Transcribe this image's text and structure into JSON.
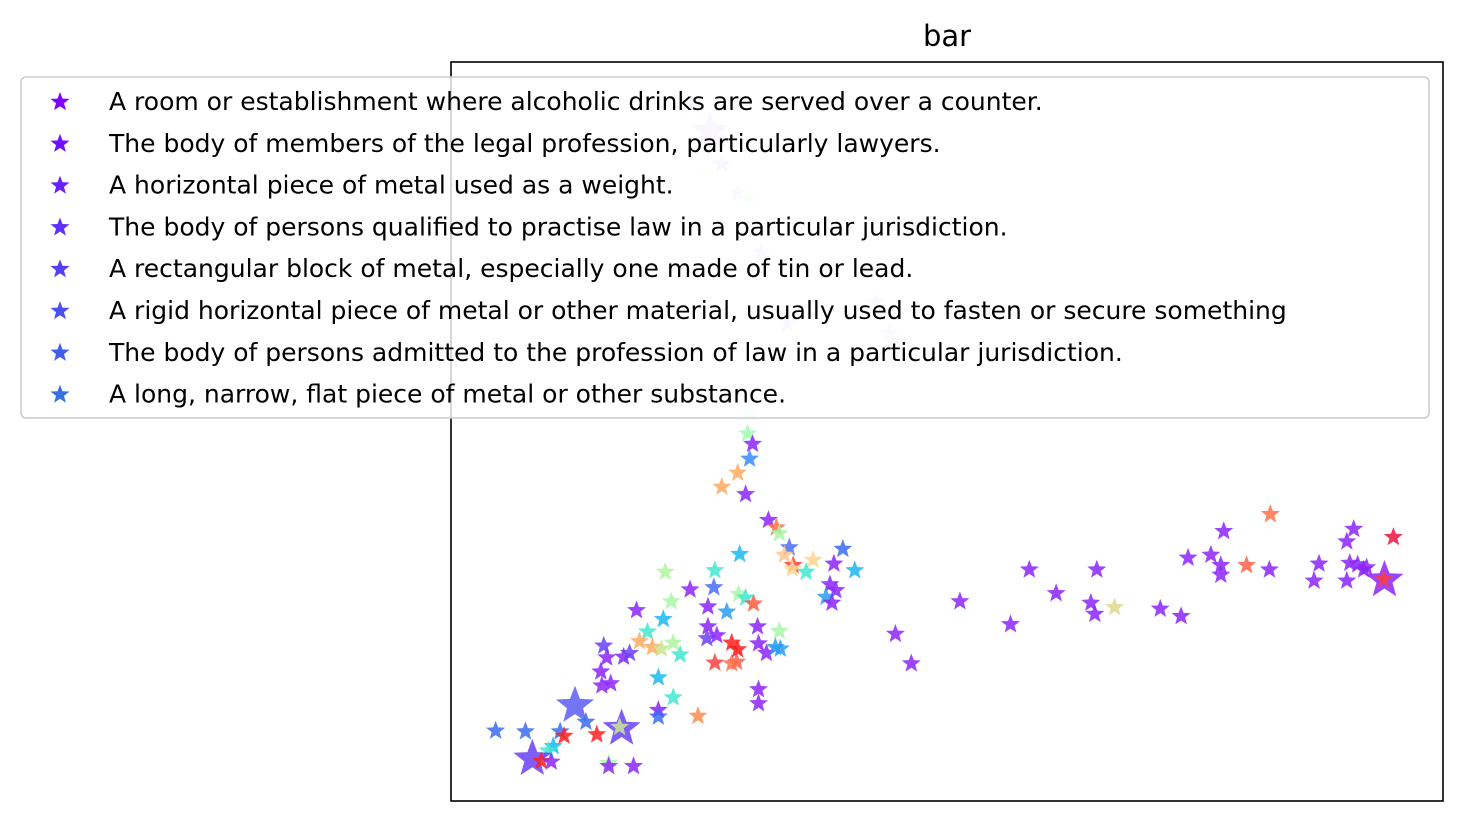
{
  "chart_data": {
    "type": "scatter",
    "title": "bar",
    "xlabel": "",
    "ylabel": "",
    "xlim": [
      0,
      100
    ],
    "ylim": [
      0,
      100
    ],
    "axis_ticks": false,
    "grid": false,
    "marker": "star",
    "legend_position": "top-left, overlapping plot",
    "legend": [
      {
        "label": "A room or establishment where alcoholic drinks are served over a counter.",
        "color": "#8000ff"
      },
      {
        "label": "The body of members of the legal profession, particularly lawyers.",
        "color": "#7010ff"
      },
      {
        "label": "A horizontal piece of metal used as a weight.",
        "color": "#6a20ff"
      },
      {
        "label": "The body of persons qualified to practise law in a particular jurisdiction.",
        "color": "#6030fb"
      },
      {
        "label": "A rectangular block of metal, especially one made of tin or lead.",
        "color": "#5440f5"
      },
      {
        "label": "A rigid horizontal piece of metal or other material, usually used to fasten or secure something",
        "color": "#4a50f0"
      },
      {
        "label": "The body of persons admitted to the profession of law in a particular jurisdiction.",
        "color": "#4060ea"
      },
      {
        "label": "A long, narrow, flat piece of metal or other substance.",
        "color": "#3670e3"
      }
    ],
    "points": [
      {
        "x": 24.3,
        "y": 94.0,
        "color": "#e0ccff",
        "large": false
      },
      {
        "x": 26.1,
        "y": 90.6,
        "color": "#dccbff",
        "large": true
      },
      {
        "x": 27.3,
        "y": 89.3,
        "color": "#e3d3ff",
        "large": false
      },
      {
        "x": 27.3,
        "y": 86.2,
        "color": "#dccbff",
        "large": false
      },
      {
        "x": 28.9,
        "y": 82.3,
        "color": "#e8dcff",
        "large": false
      },
      {
        "x": 30.0,
        "y": 81.6,
        "color": "#e0ffe8",
        "large": false
      },
      {
        "x": 25.6,
        "y": 85.0,
        "color": "#f3ffd8",
        "large": false
      },
      {
        "x": 31.3,
        "y": 74.3,
        "color": "#e6d9ff",
        "large": false
      },
      {
        "x": 42.8,
        "y": 67.5,
        "color": "#e3d3ff",
        "large": false
      },
      {
        "x": 44.2,
        "y": 63.3,
        "color": "#e6d9ff",
        "large": false
      },
      {
        "x": 33.9,
        "y": 64.5,
        "color": "#e6d9ff",
        "large": false
      },
      {
        "x": 30.0,
        "y": 52.6,
        "color": "#c8ffd8",
        "large": false
      },
      {
        "x": 29.9,
        "y": 49.7,
        "color": "#9fffb0",
        "large": false
      },
      {
        "x": 30.4,
        "y": 48.3,
        "color": "#8c24fb",
        "large": false
      },
      {
        "x": 30.1,
        "y": 46.3,
        "color": "#3a8cff",
        "large": false
      },
      {
        "x": 28.9,
        "y": 44.4,
        "color": "#ffaa60",
        "large": false
      },
      {
        "x": 27.3,
        "y": 42.5,
        "color": "#ffaa60",
        "large": false
      },
      {
        "x": 29.7,
        "y": 41.5,
        "color": "#8c24fb",
        "large": false
      },
      {
        "x": 32.0,
        "y": 38.0,
        "color": "#8c24fb",
        "large": false
      },
      {
        "x": 32.8,
        "y": 37.0,
        "color": "#ff7048",
        "large": false
      },
      {
        "x": 33.1,
        "y": 36.2,
        "color": "#a8f7a8",
        "large": false
      },
      {
        "x": 34.1,
        "y": 34.3,
        "color": "#4a6cf5",
        "large": false
      },
      {
        "x": 33.6,
        "y": 33.3,
        "color": "#ffc88c",
        "large": false
      },
      {
        "x": 34.5,
        "y": 31.9,
        "color": "#ff4040",
        "large": false
      },
      {
        "x": 36.5,
        "y": 32.6,
        "color": "#ffd28c",
        "large": false
      },
      {
        "x": 34.4,
        "y": 31.4,
        "color": "#ffd890",
        "large": false
      },
      {
        "x": 35.8,
        "y": 31.0,
        "color": "#40e8d0",
        "large": false
      },
      {
        "x": 39.5,
        "y": 34.1,
        "color": "#3a6cf5",
        "large": false
      },
      {
        "x": 40.7,
        "y": 31.2,
        "color": "#1ab8f0",
        "large": false
      },
      {
        "x": 38.2,
        "y": 29.3,
        "color": "#8c24fb",
        "large": false
      },
      {
        "x": 38.8,
        "y": 28.5,
        "color": "#8c24fb",
        "large": false
      },
      {
        "x": 37.8,
        "y": 27.6,
        "color": "#2a9cf0",
        "large": false
      },
      {
        "x": 38.4,
        "y": 26.8,
        "color": "#8c24fb",
        "large": false
      },
      {
        "x": 26.6,
        "y": 31.2,
        "color": "#40e8d0",
        "large": false
      },
      {
        "x": 29.1,
        "y": 33.4,
        "color": "#1ab8f0",
        "large": false
      },
      {
        "x": 21.6,
        "y": 31.0,
        "color": "#b0f5a0",
        "large": false
      },
      {
        "x": 24.1,
        "y": 28.6,
        "color": "#8c24fb",
        "large": false
      },
      {
        "x": 26.5,
        "y": 28.9,
        "color": "#4a6cf5",
        "large": false
      },
      {
        "x": 29.0,
        "y": 28.0,
        "color": "#a8f7a8",
        "large": false
      },
      {
        "x": 29.7,
        "y": 27.5,
        "color": "#40e8d0",
        "large": false
      },
      {
        "x": 30.5,
        "y": 26.7,
        "color": "#ff5a40",
        "large": false
      },
      {
        "x": 22.2,
        "y": 27.0,
        "color": "#a8f7a8",
        "large": false
      },
      {
        "x": 25.9,
        "y": 26.3,
        "color": "#8c24fb",
        "large": false
      },
      {
        "x": 27.8,
        "y": 25.6,
        "color": "#2a9cf0",
        "large": false
      },
      {
        "x": 21.4,
        "y": 24.6,
        "color": "#1ab8f0",
        "large": false
      },
      {
        "x": 25.9,
        "y": 23.6,
        "color": "#8c24fb",
        "large": false
      },
      {
        "x": 30.9,
        "y": 23.6,
        "color": "#8c24fb",
        "large": false
      },
      {
        "x": 33.1,
        "y": 23.0,
        "color": "#a8f7a8",
        "large": false
      },
      {
        "x": 19.8,
        "y": 22.9,
        "color": "#40e8d0",
        "large": false
      },
      {
        "x": 25.8,
        "y": 22.0,
        "color": "#6a40f8",
        "large": false
      },
      {
        "x": 26.8,
        "y": 22.4,
        "color": "#8c24fb",
        "large": false
      },
      {
        "x": 28.3,
        "y": 21.4,
        "color": "#ff2020",
        "large": false
      },
      {
        "x": 19.0,
        "y": 21.6,
        "color": "#ffaa60",
        "large": false
      },
      {
        "x": 20.3,
        "y": 20.8,
        "color": "#ffaa60",
        "large": false
      },
      {
        "x": 21.2,
        "y": 20.6,
        "color": "#c8e890",
        "large": false
      },
      {
        "x": 22.4,
        "y": 21.4,
        "color": "#b0f5a0",
        "large": false
      },
      {
        "x": 23.1,
        "y": 19.8,
        "color": "#40e8d0",
        "large": false
      },
      {
        "x": 17.4,
        "y": 19.5,
        "color": "#8c24fb",
        "large": false
      },
      {
        "x": 18.0,
        "y": 20.0,
        "color": "#6a40f8",
        "large": false
      },
      {
        "x": 31.0,
        "y": 21.3,
        "color": "#8c24fb",
        "large": false
      },
      {
        "x": 31.8,
        "y": 20.0,
        "color": "#8c24fb",
        "large": false
      },
      {
        "x": 32.7,
        "y": 20.8,
        "color": "#2a9cf0",
        "large": false
      },
      {
        "x": 33.2,
        "y": 20.6,
        "color": "#2a9cf0",
        "large": false
      },
      {
        "x": 26.6,
        "y": 18.7,
        "color": "#ff4040",
        "large": false
      },
      {
        "x": 28.8,
        "y": 18.8,
        "color": "#ff6048",
        "large": false
      },
      {
        "x": 28.3,
        "y": 18.6,
        "color": "#ff7048",
        "large": false
      },
      {
        "x": 28.9,
        "y": 20.5,
        "color": "#ff1818",
        "large": false
      },
      {
        "x": 20.9,
        "y": 16.7,
        "color": "#1ab8f0",
        "large": false
      },
      {
        "x": 15.2,
        "y": 15.6,
        "color": "#8c24fb",
        "large": false
      },
      {
        "x": 31.0,
        "y": 15.1,
        "color": "#8c24fb",
        "large": false
      },
      {
        "x": 22.4,
        "y": 14.0,
        "color": "#40e8d0",
        "large": false
      },
      {
        "x": 31.0,
        "y": 13.2,
        "color": "#8c24fb",
        "large": false
      },
      {
        "x": 20.9,
        "y": 12.3,
        "color": "#8c24fb",
        "large": false
      },
      {
        "x": 20.9,
        "y": 11.4,
        "color": "#3a6cf5",
        "large": false
      },
      {
        "x": 24.9,
        "y": 11.5,
        "color": "#ff8c50",
        "large": false
      },
      {
        "x": 12.5,
        "y": 12.9,
        "color": "#5a5cf5",
        "large": true
      },
      {
        "x": 13.6,
        "y": 10.7,
        "color": "#3a6cf5",
        "large": false
      },
      {
        "x": 17.2,
        "y": 9.8,
        "color": "#6a40f8",
        "large": true
      },
      {
        "x": 17.0,
        "y": 10.0,
        "color": "#c8e890",
        "large": false
      },
      {
        "x": 11.0,
        "y": 9.4,
        "color": "#3a6cf5",
        "large": false
      },
      {
        "x": 11.4,
        "y": 8.8,
        "color": "#ff2020",
        "large": false
      },
      {
        "x": 14.7,
        "y": 9.0,
        "color": "#ff2020",
        "large": false
      },
      {
        "x": 10.3,
        "y": 7.4,
        "color": "#1ab8f0",
        "large": false
      },
      {
        "x": 9.8,
        "y": 6.8,
        "color": "#40e8d0",
        "large": false
      },
      {
        "x": 4.5,
        "y": 9.5,
        "color": "#3a6cf5",
        "large": false
      },
      {
        "x": 7.5,
        "y": 9.4,
        "color": "#3a6cf5",
        "large": false
      },
      {
        "x": 8.2,
        "y": 5.7,
        "color": "#6a40f8",
        "large": true
      },
      {
        "x": 9.1,
        "y": 5.4,
        "color": "#ff2020",
        "large": false
      },
      {
        "x": 10.1,
        "y": 5.3,
        "color": "#8c24fb",
        "large": false
      },
      {
        "x": 15.9,
        "y": 5.1,
        "color": "#a8f7a8",
        "large": false
      },
      {
        "x": 15.9,
        "y": 4.7,
        "color": "#8c24fb",
        "large": false
      },
      {
        "x": 18.4,
        "y": 4.7,
        "color": "#8c24fb",
        "large": false
      },
      {
        "x": 15.1,
        "y": 17.5,
        "color": "#8c24fb",
        "large": false
      },
      {
        "x": 15.7,
        "y": 19.4,
        "color": "#8c24fb",
        "large": false
      },
      {
        "x": 18.7,
        "y": 25.8,
        "color": "#8c24fb",
        "large": false
      },
      {
        "x": 16.1,
        "y": 15.9,
        "color": "#8c24fb",
        "large": false
      },
      {
        "x": 15.4,
        "y": 21.0,
        "color": "#6a40f8",
        "large": false
      },
      {
        "x": 38.6,
        "y": 32.1,
        "color": "#8c24fb",
        "large": false
      },
      {
        "x": 44.8,
        "y": 22.6,
        "color": "#8c24fb",
        "large": false
      },
      {
        "x": 46.4,
        "y": 18.6,
        "color": "#8c24fb",
        "large": false
      },
      {
        "x": 51.3,
        "y": 27.0,
        "color": "#8c24fb",
        "large": false
      },
      {
        "x": 56.4,
        "y": 23.9,
        "color": "#8c24fb",
        "large": false
      },
      {
        "x": 58.3,
        "y": 31.3,
        "color": "#8c24fb",
        "large": false
      },
      {
        "x": 61.0,
        "y": 28.1,
        "color": "#8c24fb",
        "large": false
      },
      {
        "x": 65.1,
        "y": 31.3,
        "color": "#8c24fb",
        "large": false
      },
      {
        "x": 64.5,
        "y": 26.8,
        "color": "#8c24fb",
        "large": false
      },
      {
        "x": 64.9,
        "y": 25.3,
        "color": "#8c24fb",
        "large": false
      },
      {
        "x": 66.9,
        "y": 26.2,
        "color": "#e0d890",
        "large": false
      },
      {
        "x": 71.5,
        "y": 26.0,
        "color": "#8c24fb",
        "large": false
      },
      {
        "x": 73.6,
        "y": 25.0,
        "color": "#8c24fb",
        "large": false
      },
      {
        "x": 74.3,
        "y": 32.9,
        "color": "#8c24fb",
        "large": false
      },
      {
        "x": 76.6,
        "y": 33.3,
        "color": "#8c24fb",
        "large": false
      },
      {
        "x": 77.6,
        "y": 31.9,
        "color": "#8c24fb",
        "large": false
      },
      {
        "x": 77.6,
        "y": 30.6,
        "color": "#8c24fb",
        "large": false
      },
      {
        "x": 77.9,
        "y": 36.5,
        "color": "#8c24fb",
        "large": false
      },
      {
        "x": 80.2,
        "y": 31.9,
        "color": "#ff6048",
        "large": false
      },
      {
        "x": 82.5,
        "y": 31.3,
        "color": "#8c24fb",
        "large": false
      },
      {
        "x": 82.6,
        "y": 38.8,
        "color": "#ff7048",
        "large": false
      },
      {
        "x": 87.0,
        "y": 29.8,
        "color": "#8c24fb",
        "large": false
      },
      {
        "x": 87.5,
        "y": 32.1,
        "color": "#8c24fb",
        "large": false
      },
      {
        "x": 90.3,
        "y": 35.1,
        "color": "#8c24fb",
        "large": false
      },
      {
        "x": 91.0,
        "y": 36.8,
        "color": "#8c24fb",
        "large": false
      },
      {
        "x": 90.6,
        "y": 32.2,
        "color": "#8c24fb",
        "large": false
      },
      {
        "x": 91.4,
        "y": 32.0,
        "color": "#8c24fb",
        "large": false
      },
      {
        "x": 92.0,
        "y": 31.3,
        "color": "#8c24fb",
        "large": false
      },
      {
        "x": 92.3,
        "y": 31.6,
        "color": "#8c24fb",
        "large": false
      },
      {
        "x": 90.3,
        "y": 29.8,
        "color": "#8c24fb",
        "large": false
      },
      {
        "x": 94.1,
        "y": 29.9,
        "color": "#8c24fb",
        "large": true
      },
      {
        "x": 94.0,
        "y": 30.0,
        "color": "#ff3c3c",
        "large": false
      },
      {
        "x": 95.0,
        "y": 35.7,
        "color": "#ee1040",
        "large": false
      }
    ]
  }
}
